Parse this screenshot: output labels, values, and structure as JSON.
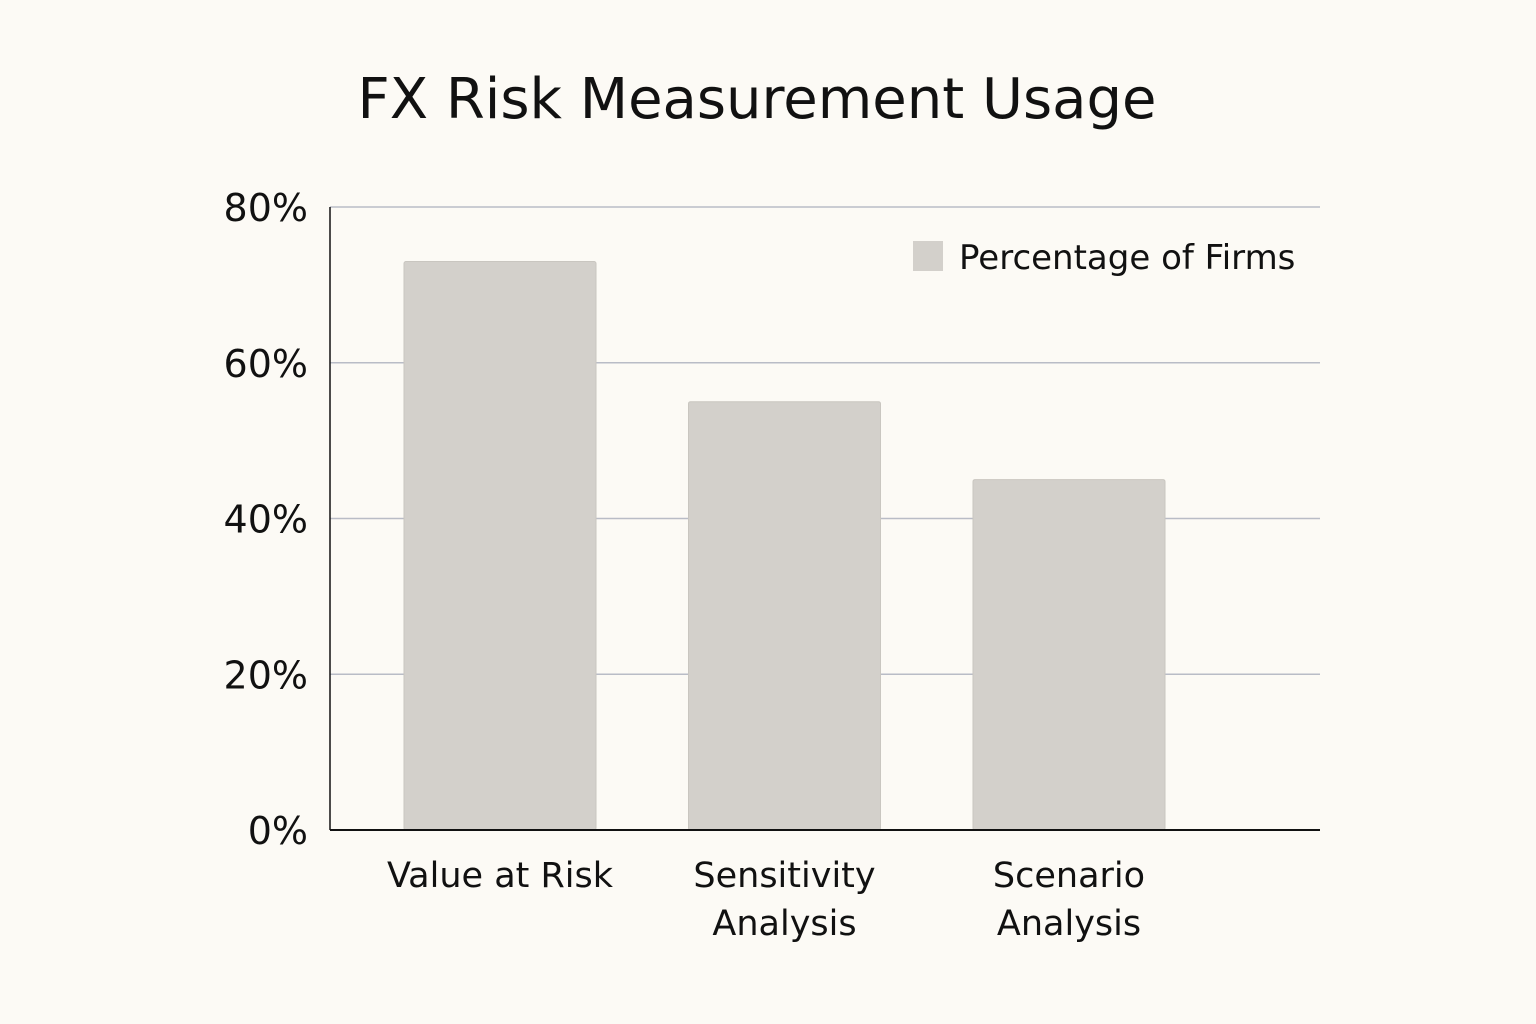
{
  "chart_data": {
    "type": "bar",
    "title": "FX Risk Measurement Usage",
    "xlabel": "",
    "ylabel": "",
    "categories": [
      [
        "Value at Risk"
      ],
      [
        "Sensitivity",
        "Analysis"
      ],
      [
        "Scenario",
        "Analysis"
      ]
    ],
    "series": [
      {
        "name": "Percentage of Firms",
        "values": [
          73,
          55,
          45
        ]
      }
    ],
    "ylim": [
      0,
      80
    ],
    "yticks": [
      0,
      20,
      40,
      60,
      80
    ],
    "ytick_labels": [
      "0%",
      "20%",
      "40%",
      "60%",
      "80%"
    ],
    "grid": true,
    "legend_placement": "top-right",
    "colors": {
      "bar": "#d3d0cb",
      "grid": "#b9bcc6",
      "background": "#fcfaf5",
      "axis": "#111111"
    }
  }
}
